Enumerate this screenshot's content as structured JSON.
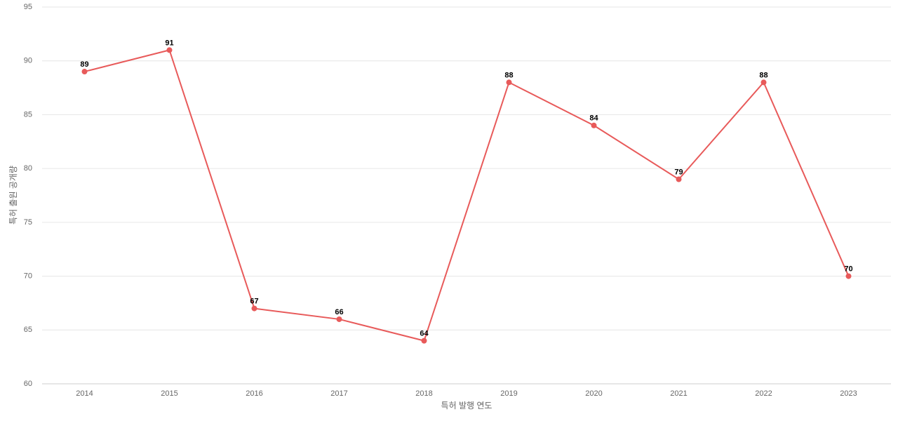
{
  "chart_data": {
    "type": "line",
    "xlabel": "특허 발행 연도",
    "ylabel": "특허 출원 공개량",
    "categories": [
      "2014",
      "2015",
      "2016",
      "2017",
      "2018",
      "2019",
      "2020",
      "2021",
      "2022",
      "2023"
    ],
    "values": [
      89,
      91,
      67,
      66,
      64,
      88,
      84,
      79,
      88,
      70
    ],
    "color": "#e85a5a",
    "ylim": [
      60,
      95
    ],
    "yticks": [
      60,
      65,
      70,
      75,
      80,
      85,
      90,
      95
    ],
    "grid": true,
    "data_labels": true
  }
}
